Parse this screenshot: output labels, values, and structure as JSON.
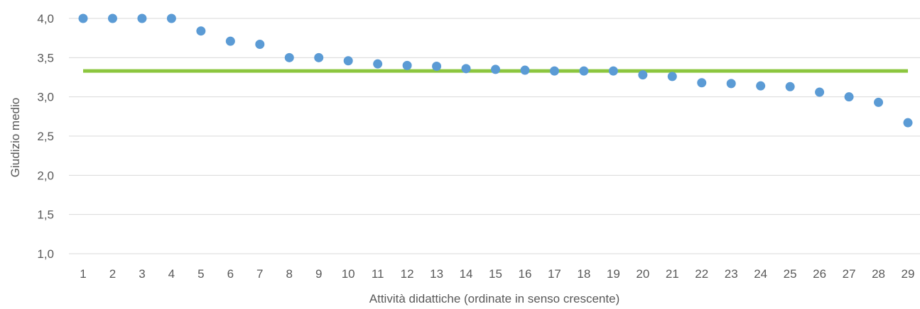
{
  "chart_data": {
    "type": "scatter",
    "title": "",
    "xlabel": "Attività didattiche (ordinate in senso crescente)",
    "ylabel": "Giudizio medio",
    "x": [
      1,
      2,
      3,
      4,
      5,
      6,
      7,
      8,
      9,
      10,
      11,
      12,
      13,
      14,
      15,
      16,
      17,
      18,
      19,
      20,
      21,
      22,
      23,
      24,
      25,
      26,
      27,
      28,
      29
    ],
    "series": [
      {
        "values": [
          4.0,
          4.0,
          4.0,
          4.0,
          3.84,
          3.71,
          3.67,
          3.5,
          3.5,
          3.46,
          3.42,
          3.4,
          3.39,
          3.36,
          3.35,
          3.34,
          3.33,
          3.33,
          3.33,
          3.28,
          3.26,
          3.18,
          3.17,
          3.14,
          3.13,
          3.06,
          3.0,
          2.93,
          2.67
        ],
        "color": "#5B9BD5"
      }
    ],
    "reference_line": {
      "value": 3.33,
      "color": "#8CC63F"
    },
    "ylim": [
      1.0,
      4.0
    ],
    "xlim": [
      1,
      29
    ],
    "y_ticks": [
      "1,0",
      "1,5",
      "2,0",
      "2,5",
      "3,0",
      "3,5",
      "4,0"
    ],
    "x_ticks": [
      "1",
      "2",
      "3",
      "4",
      "5",
      "6",
      "7",
      "8",
      "9",
      "10",
      "11",
      "12",
      "13",
      "14",
      "15",
      "16",
      "17",
      "18",
      "19",
      "20",
      "21",
      "22",
      "23",
      "24",
      "25",
      "26",
      "27",
      "28",
      "29"
    ],
    "grid": true,
    "legend": "none",
    "gridline_color": "#D9D9D9",
    "text_color": "#595959"
  }
}
